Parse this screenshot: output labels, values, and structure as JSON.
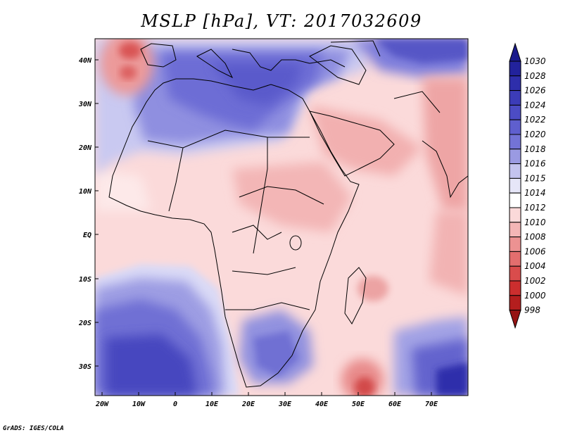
{
  "title": "MSLP [hPa], VT: 2017032609",
  "credit": "GrADS: IGES/COLA",
  "lat_labels": [
    "40N",
    "30N",
    "20N",
    "10N",
    "EQ",
    "10S",
    "20S",
    "30S"
  ],
  "lon_labels": [
    "20W",
    "10W",
    "0",
    "10E",
    "20E",
    "30E",
    "40E",
    "50E",
    "60E",
    "70E"
  ],
  "colorbar": {
    "levels": [
      "1030",
      "1028",
      "1026",
      "1024",
      "1022",
      "1020",
      "1018",
      "1016",
      "1015",
      "1014",
      "1012",
      "1010",
      "1008",
      "1006",
      "1004",
      "1002",
      "1000",
      "998"
    ],
    "colors": [
      "#1a1a8c",
      "#22229c",
      "#2e2eab",
      "#3c3cb8",
      "#4c4cc4",
      "#5f5fce",
      "#7373d6",
      "#9a9ae2",
      "#c4c4ef",
      "#e6e6f8",
      "#ffffff",
      "#fbd9d9",
      "#f4b6b6",
      "#ec9292",
      "#e36e6e",
      "#d94c4c",
      "#cc2e2e",
      "#b41e1e",
      "#961414"
    ]
  },
  "colors": {
    "land_border": "#000000",
    "frame": "#000000"
  }
}
